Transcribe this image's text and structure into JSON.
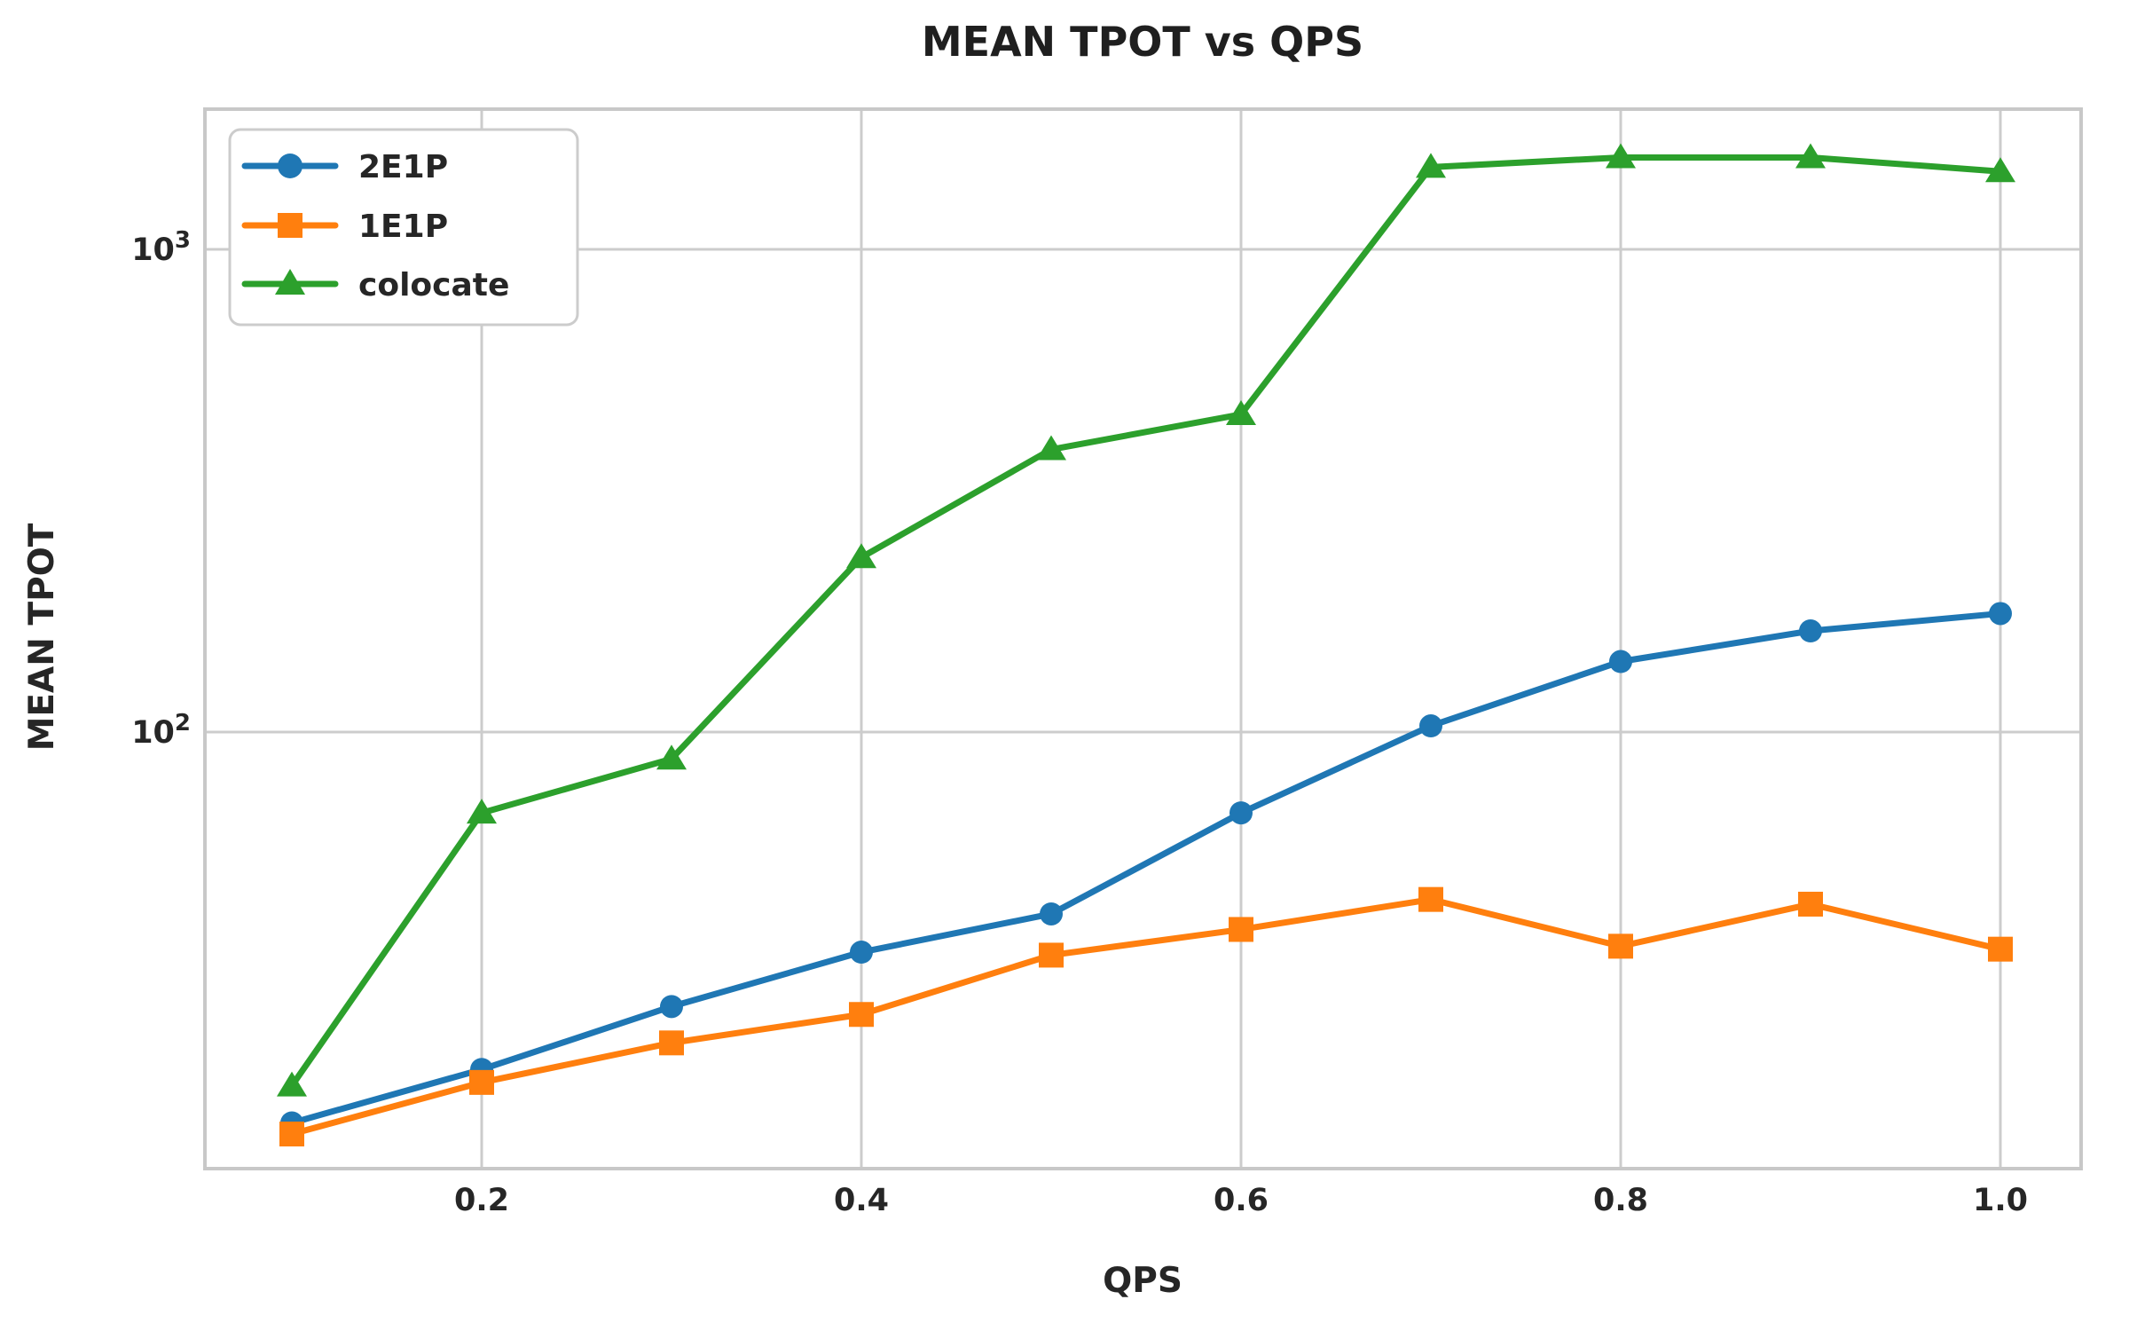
{
  "chart_data": {
    "type": "line",
    "title": "MEAN TPOT vs QPS",
    "xlabel": "QPS",
    "ylabel": "MEAN TPOT",
    "x_scale": "linear",
    "y_scale": "log",
    "x": [
      0.1,
      0.2,
      0.3,
      0.4,
      0.5,
      0.6,
      0.7,
      0.8,
      0.9,
      1.0
    ],
    "series": [
      {
        "name": "2E1P",
        "color": "#1f77b4",
        "marker": "circle",
        "values": [
          15.5,
          20,
          27,
          35,
          42,
          68,
          103,
          140,
          162,
          176
        ]
      },
      {
        "name": "1E1P",
        "color": "#ff7f0e",
        "marker": "square",
        "values": [
          14.7,
          18.8,
          22.7,
          26,
          34.5,
          39,
          45,
          36,
          44,
          35.5
        ]
      },
      {
        "name": "colocate",
        "color": "#2ca02c",
        "marker": "triangle",
        "values": [
          18.5,
          68,
          88,
          230,
          385,
          455,
          1480,
          1550,
          1550,
          1450
        ]
      }
    ],
    "x_ticks": {
      "values": [
        0.2,
        0.4,
        0.6,
        0.8,
        1.0
      ],
      "labels": [
        "0.2",
        "0.4",
        "0.6",
        "0.8",
        "1.0"
      ]
    },
    "y_ticks": {
      "values": [
        1000,
        100
      ],
      "labels": [
        {
          "base": "10",
          "exp": "3"
        },
        {
          "base": "10",
          "exp": "2"
        }
      ]
    },
    "xlim": [
      0.054,
      1.05
    ],
    "ylim": [
      12.5,
      1950
    ],
    "grid": true,
    "legend_position": "upper left",
    "colors": {
      "grid": "#cccccc",
      "spine": "#c8c8c8",
      "text": "#262626"
    }
  }
}
